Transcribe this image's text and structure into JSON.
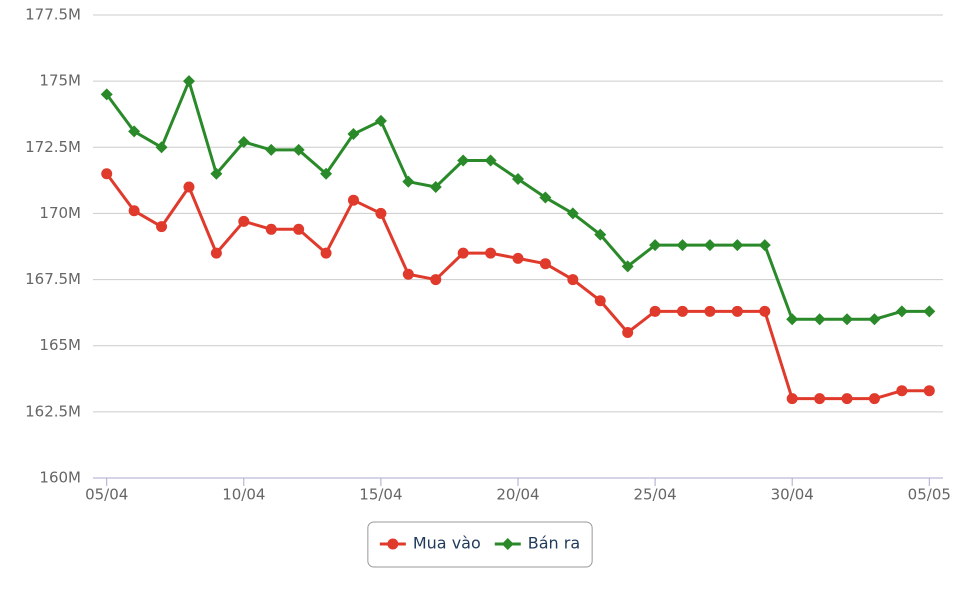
{
  "chart_data": {
    "type": "line",
    "categories": [
      "05/04",
      null,
      null,
      null,
      null,
      "10/04",
      null,
      null,
      null,
      null,
      "15/04",
      null,
      null,
      null,
      null,
      "20/04",
      null,
      null,
      null,
      null,
      "25/04",
      null,
      null,
      null,
      null,
      "30/04",
      null,
      null,
      null,
      null,
      "05/05"
    ],
    "series": [
      {
        "name": "Mua vào",
        "color": "#e03a2c",
        "marker": "circle",
        "values": [
          171.5,
          170.1,
          169.5,
          171.0,
          168.5,
          169.7,
          169.4,
          169.4,
          168.5,
          170.5,
          170.0,
          167.7,
          167.5,
          168.5,
          168.5,
          168.3,
          168.1,
          167.5,
          166.7,
          165.5,
          166.3,
          166.3,
          166.3,
          166.3,
          166.3,
          163.0,
          163.0,
          163.0,
          163.0,
          163.3,
          163.3
        ]
      },
      {
        "name": "Bán ra",
        "color": "#2a8a2a",
        "marker": "diamond",
        "values": [
          174.5,
          173.1,
          172.5,
          175.0,
          171.5,
          172.7,
          172.4,
          172.4,
          171.5,
          173.0,
          173.5,
          171.2,
          171.0,
          172.0,
          172.0,
          171.3,
          170.6,
          170.0,
          169.2,
          168.0,
          168.8,
          168.8,
          168.8,
          168.8,
          168.8,
          166.0,
          166.0,
          166.0,
          166.0,
          166.3,
          166.3
        ]
      }
    ],
    "ylim": [
      160,
      177.5
    ],
    "yticks": [
      {
        "value": 160,
        "label": "160M"
      },
      {
        "value": 162.5,
        "label": "162.5M"
      },
      {
        "value": 165,
        "label": "165M"
      },
      {
        "value": 167.5,
        "label": "167.5M"
      },
      {
        "value": 170,
        "label": "170M"
      },
      {
        "value": 172.5,
        "label": "172.5M"
      },
      {
        "value": 175,
        "label": "175M"
      },
      {
        "value": 177.5,
        "label": "177.5M"
      }
    ],
    "grid": true,
    "legend": "bottom"
  }
}
